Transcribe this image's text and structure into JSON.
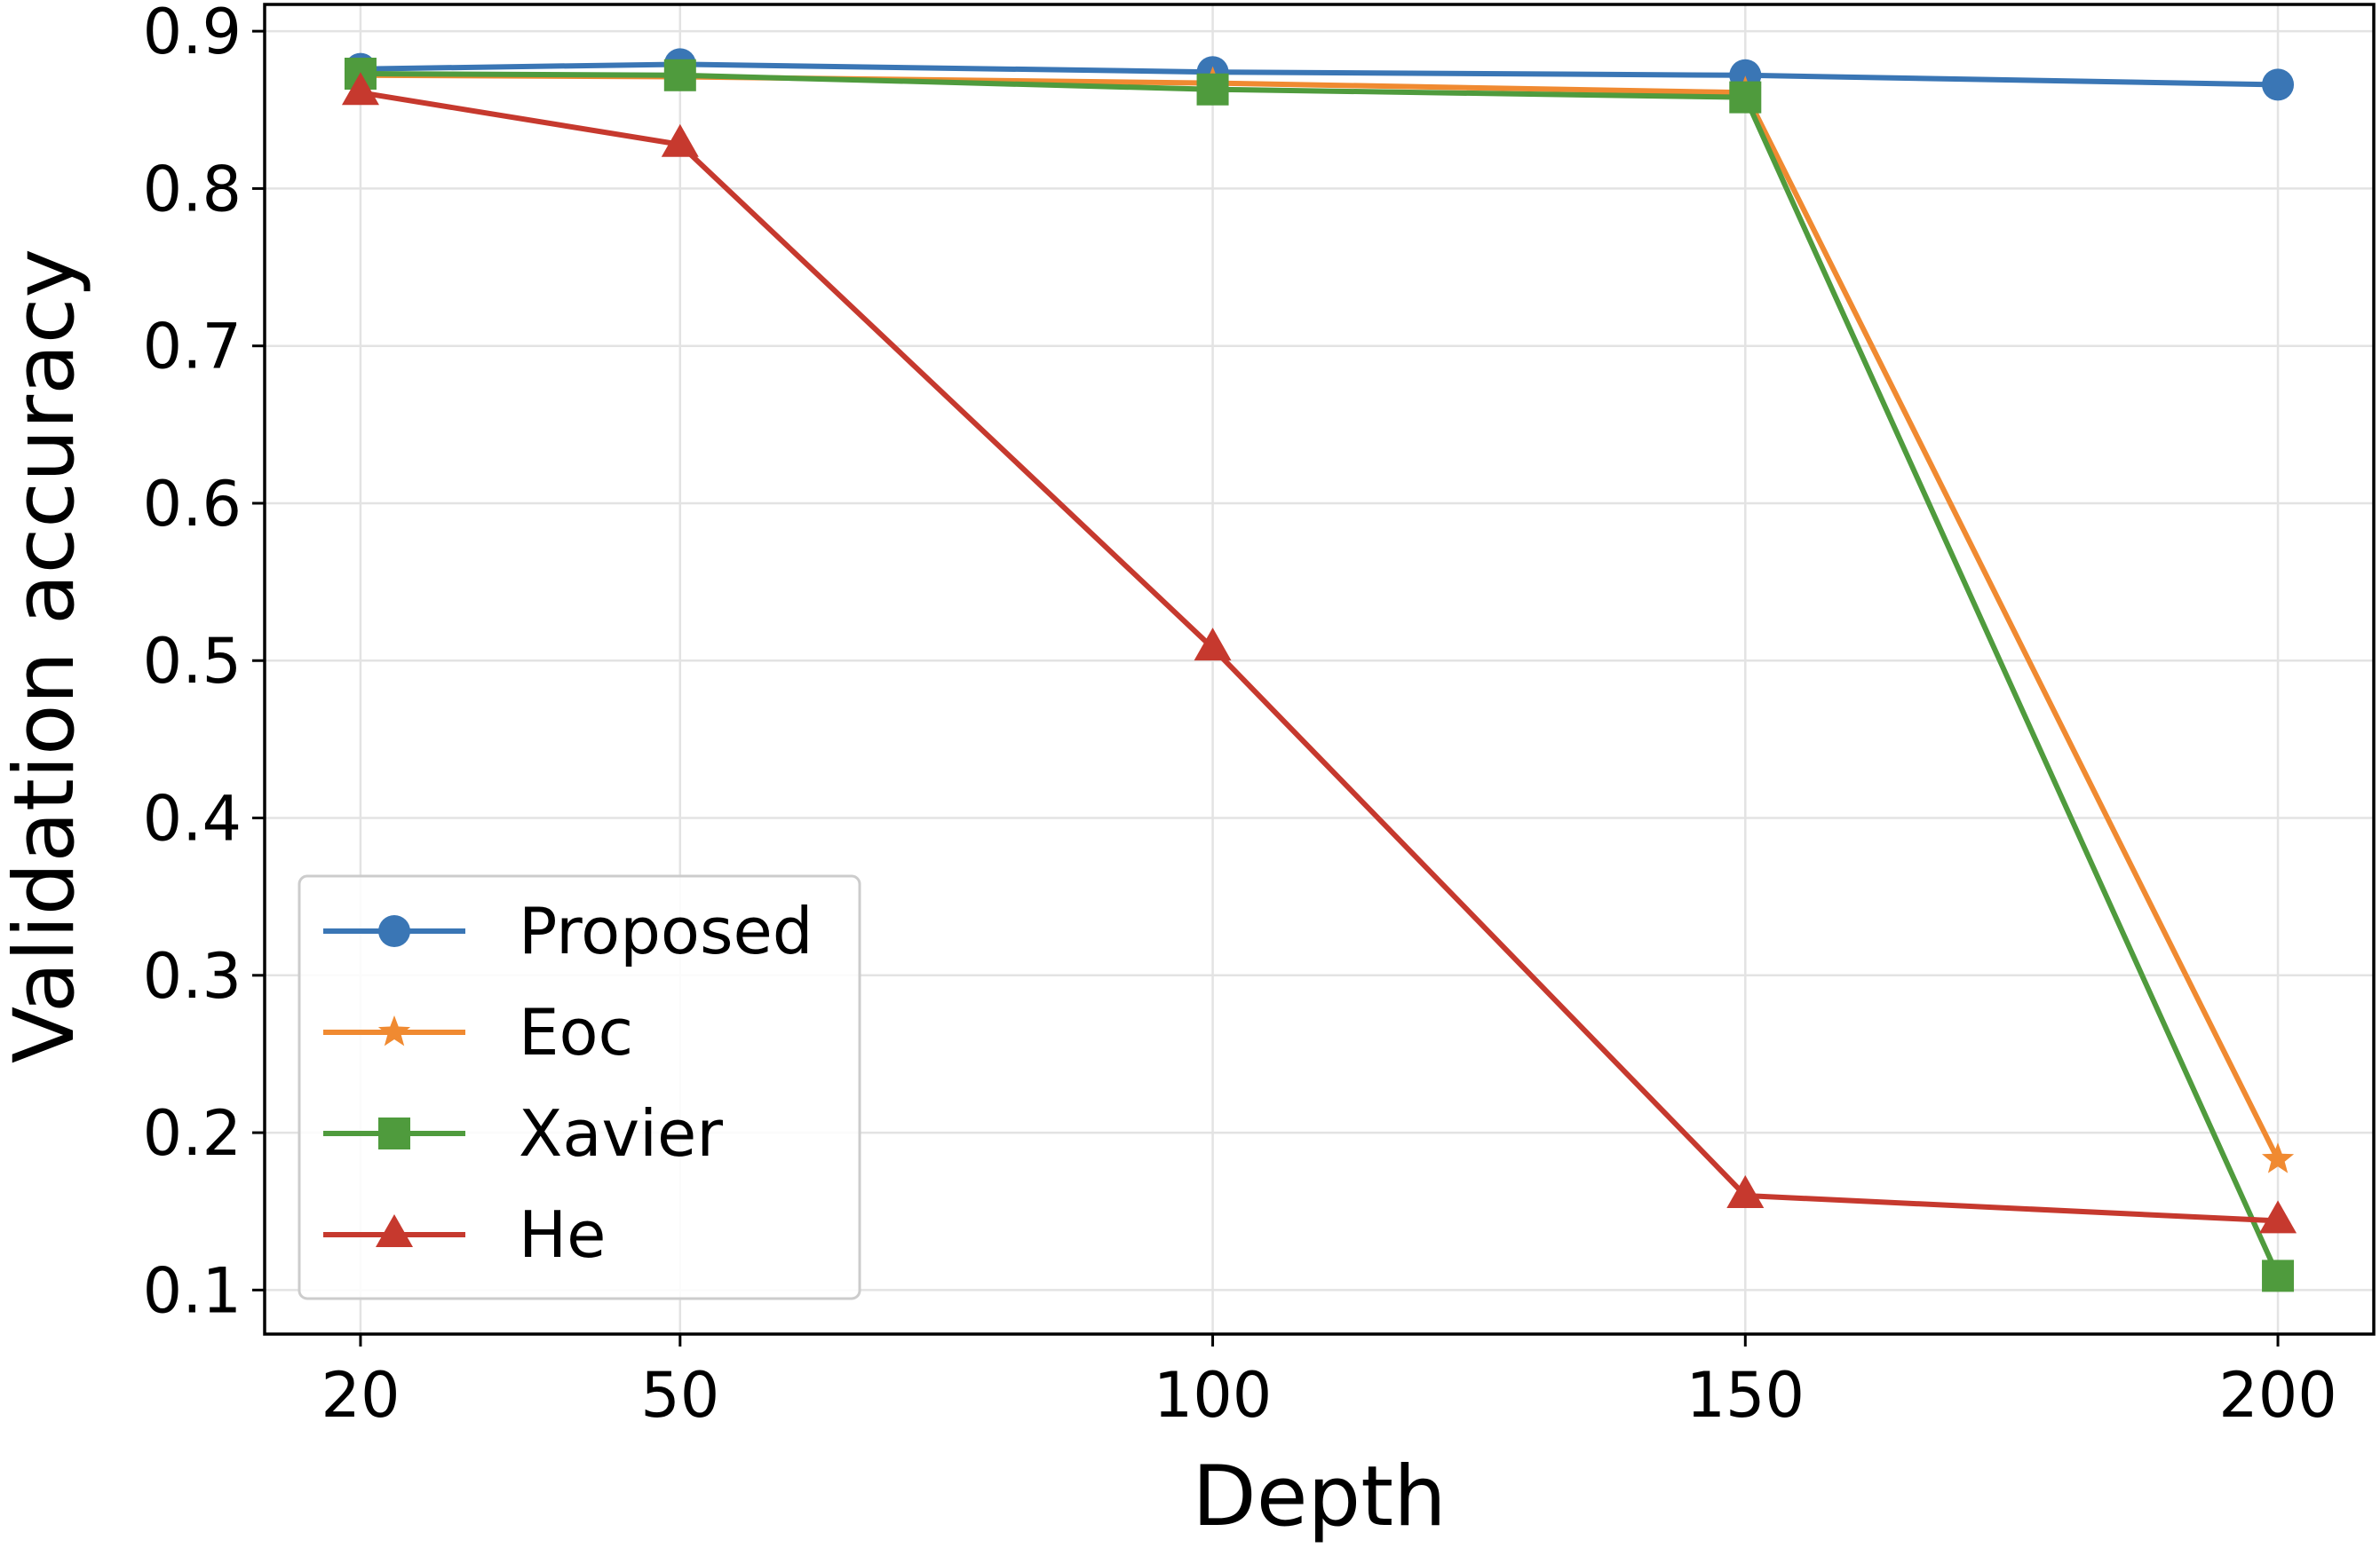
{
  "chart_data": {
    "type": "line",
    "title": "",
    "xlabel": "Depth",
    "ylabel": "Validation accuracy",
    "x": [
      20,
      50,
      100,
      150,
      200
    ],
    "x_ticks": [
      "20",
      "50",
      "100",
      "150",
      "200"
    ],
    "y_ticks": [
      "0.1",
      "0.2",
      "0.3",
      "0.4",
      "0.5",
      "0.6",
      "0.7",
      "0.8",
      "0.9"
    ],
    "xlim": [
      11,
      209
    ],
    "ylim": [
      0.072,
      0.917
    ],
    "grid": true,
    "legend_position": "lower-left",
    "series": [
      {
        "name": "Proposed",
        "color": "#3a76b5",
        "marker": "circle",
        "values": [
          0.876,
          0.879,
          0.874,
          0.872,
          0.866
        ]
      },
      {
        "name": "Eoc",
        "color": "#f08a31",
        "marker": "star",
        "values": [
          0.872,
          0.871,
          0.867,
          0.861,
          0.183
        ]
      },
      {
        "name": "Xavier",
        "color": "#4f9b3d",
        "marker": "square",
        "values": [
          0.873,
          0.872,
          0.863,
          0.858,
          0.109
        ]
      },
      {
        "name": "He",
        "color": "#c6392e",
        "marker": "triangle",
        "values": [
          0.861,
          0.828,
          0.508,
          0.16,
          0.144
        ]
      }
    ]
  }
}
